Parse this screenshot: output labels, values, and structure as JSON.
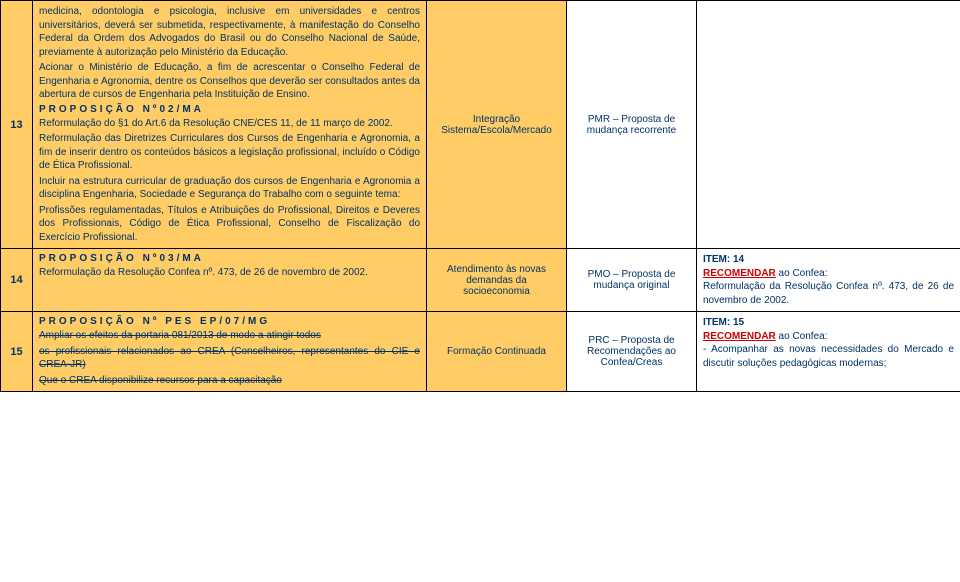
{
  "rows": [
    {
      "num": "13",
      "desc_intro": "medicina, odontologia e psicologia, inclusive em universidades e centros universitários, deverá ser submetida, respectivamente, à manifestação do Conselho Federal da Ordem dos Advogados do Brasil ou do Conselho Nacional de Saúde, previamente à autorização pelo Ministério da Educação.",
      "desc_intro2": "Acionar o Ministério de Educação, a fim de acrescentar o Conselho Federal de Engenharia e Agronomia, dentre os Conselhos que deverão ser consultados antes da abertura de cursos de Engenharia pela Instituição de Ensino.",
      "prop_code": "PROPOSIÇÃO Nº02/MA",
      "prop_line1": "Reformulação do §1 do Art.6 da Resolução CNE/CES 11, de 11 março de 2002.",
      "prop_body1": "Reformulação das Diretrizes Curriculares dos Cursos de Engenharia e Agronomia, a fim de inserir dentro os conteúdos básicos a legislação profissional, incluído o Código de Ética Profissional.",
      "prop_body2": "Incluir na estrutura curricular de graduação dos cursos de Engenharia e Agronomia a disciplina Engenharia, Sociedade e Segurança do Trabalho com o seguinte tema:",
      "prop_body3": "Profissões regulamentadas, Títulos e Atribuições do Profissional, Direitos e Deveres dos Profissionais, Código de Ética Profissional, Conselho de Fiscalização do Exercício Profissional.",
      "category": "Integração Sistema/Escola/Mercado",
      "proposal": "PMR – Proposta de mudança recorrente",
      "item": ""
    },
    {
      "num": "14",
      "prop_code": "PROPOSIÇÃO Nº03/MA",
      "prop_line1": "Reformulação da Resolução Confea nº. 473, de 26 de novembro de 2002.",
      "category": "Atendimento às novas demandas da socioeconomia",
      "proposal": "PMO – Proposta de mudança original",
      "item_title": "ITEM: 14",
      "item_rec": "RECOMENDAR",
      "item_rec_suffix": " ao Confea:",
      "item_body": "Reformulação da Resolução Confea nº. 473, de 26 de novembro de 2002."
    },
    {
      "num": "15",
      "prop_code": "PROPOSIÇÃO Nº PES EP/07/MG",
      "strike1": "Ampliar os efeitos da portaria 081/2013 de modo a atingir todos",
      "strike2": "os profissionais relacionados ao CREA (Conselheiros, representantes do CIE e CREA-JR)",
      "strike3": "Que o CREA disponibilize recursos para a capacitação",
      "category": "Formação Continuada",
      "proposal": "PRC – Proposta de Recomendações ao Confea/Creas",
      "item_title": "ITEM: 15",
      "item_rec": "RECOMENDAR",
      "item_rec_suffix": " ao Confea:",
      "item_body": "- Acompanhar as novas necessidades do Mercado e discutir soluções pedagógicas modernas;"
    }
  ]
}
